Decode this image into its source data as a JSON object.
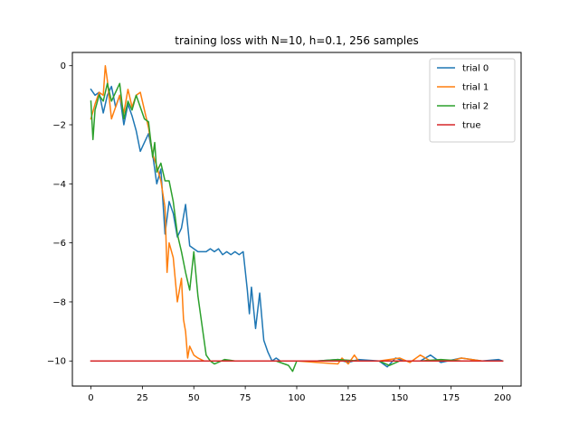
{
  "chart_data": {
    "type": "line",
    "title": "training loss with N=10, h=0.1, 256 samples",
    "xlabel": "",
    "ylabel": "",
    "xlim": [
      -9,
      209
    ],
    "ylim": [
      -10.85,
      0.45
    ],
    "xticks": [
      0,
      25,
      50,
      75,
      100,
      125,
      150,
      175,
      200
    ],
    "yticks": [
      0,
      -2,
      -4,
      -6,
      -8,
      -10
    ],
    "grid": false,
    "legend_position": "top-right",
    "series": [
      {
        "name": "trial 0",
        "color": "#1f77b4",
        "points": [
          [
            0,
            -0.8
          ],
          [
            2,
            -1.0
          ],
          [
            4,
            -0.9
          ],
          [
            6,
            -1.6
          ],
          [
            8,
            -1.0
          ],
          [
            10,
            -0.7
          ],
          [
            12,
            -1.4
          ],
          [
            14,
            -1.0
          ],
          [
            16,
            -2.0
          ],
          [
            18,
            -1.3
          ],
          [
            20,
            -1.7
          ],
          [
            22,
            -2.2
          ],
          [
            24,
            -2.9
          ],
          [
            26,
            -2.6
          ],
          [
            28,
            -2.3
          ],
          [
            30,
            -3.0
          ],
          [
            32,
            -4.0
          ],
          [
            34,
            -3.5
          ],
          [
            36,
            -5.7
          ],
          [
            38,
            -4.6
          ],
          [
            40,
            -5.0
          ],
          [
            42,
            -5.8
          ],
          [
            44,
            -5.5
          ],
          [
            46,
            -4.7
          ],
          [
            48,
            -6.1
          ],
          [
            50,
            -6.2
          ],
          [
            52,
            -6.3
          ],
          [
            54,
            -6.3
          ],
          [
            56,
            -6.3
          ],
          [
            58,
            -6.2
          ],
          [
            60,
            -6.3
          ],
          [
            62,
            -6.2
          ],
          [
            64,
            -6.4
          ],
          [
            66,
            -6.3
          ],
          [
            68,
            -6.4
          ],
          [
            70,
            -6.3
          ],
          [
            72,
            -6.4
          ],
          [
            74,
            -6.3
          ],
          [
            76,
            -7.6
          ],
          [
            77,
            -8.4
          ],
          [
            78,
            -7.5
          ],
          [
            80,
            -8.9
          ],
          [
            82,
            -7.7
          ],
          [
            84,
            -9.3
          ],
          [
            86,
            -9.7
          ],
          [
            88,
            -10.0
          ],
          [
            90,
            -9.9
          ],
          [
            92,
            -10.0
          ],
          [
            95,
            -10.0
          ],
          [
            100,
            -10.0
          ],
          [
            110,
            -10.0
          ],
          [
            120,
            -9.95
          ],
          [
            125,
            -10.05
          ],
          [
            130,
            -9.95
          ],
          [
            140,
            -10.0
          ],
          [
            144,
            -10.2
          ],
          [
            148,
            -9.9
          ],
          [
            152,
            -10.0
          ],
          [
            160,
            -10.0
          ],
          [
            165,
            -9.8
          ],
          [
            170,
            -10.05
          ],
          [
            180,
            -9.9
          ],
          [
            190,
            -10.0
          ],
          [
            198,
            -9.95
          ],
          [
            200,
            -10.0
          ]
        ]
      },
      {
        "name": "trial 1",
        "color": "#ff7f0e",
        "points": [
          [
            0,
            -1.8
          ],
          [
            2,
            -1.3
          ],
          [
            4,
            -0.9
          ],
          [
            6,
            -1.0
          ],
          [
            7,
            0.0
          ],
          [
            8,
            -0.5
          ],
          [
            10,
            -1.8
          ],
          [
            12,
            -1.4
          ],
          [
            14,
            -1.0
          ],
          [
            16,
            -1.6
          ],
          [
            18,
            -0.8
          ],
          [
            20,
            -1.4
          ],
          [
            22,
            -1.0
          ],
          [
            24,
            -0.9
          ],
          [
            26,
            -1.5
          ],
          [
            28,
            -2.1
          ],
          [
            30,
            -3.0
          ],
          [
            32,
            -3.4
          ],
          [
            34,
            -3.9
          ],
          [
            36,
            -4.8
          ],
          [
            37,
            -7.0
          ],
          [
            38,
            -6.0
          ],
          [
            40,
            -6.5
          ],
          [
            42,
            -8.0
          ],
          [
            44,
            -7.2
          ],
          [
            45,
            -8.6
          ],
          [
            46,
            -9.0
          ],
          [
            47,
            -9.9
          ],
          [
            48,
            -9.5
          ],
          [
            50,
            -9.8
          ],
          [
            52,
            -9.9
          ],
          [
            55,
            -10.0
          ],
          [
            60,
            -10.0
          ],
          [
            80,
            -10.0
          ],
          [
            100,
            -10.0
          ],
          [
            120,
            -10.1
          ],
          [
            122,
            -9.9
          ],
          [
            125,
            -10.1
          ],
          [
            128,
            -9.8
          ],
          [
            130,
            -10.0
          ],
          [
            140,
            -10.0
          ],
          [
            150,
            -9.9
          ],
          [
            155,
            -10.05
          ],
          [
            160,
            -9.8
          ],
          [
            165,
            -10.0
          ],
          [
            175,
            -10.0
          ],
          [
            180,
            -9.9
          ],
          [
            190,
            -10.0
          ],
          [
            200,
            -10.0
          ]
        ]
      },
      {
        "name": "trial 2",
        "color": "#2ca02c",
        "points": [
          [
            0,
            -1.2
          ],
          [
            1,
            -2.5
          ],
          [
            2,
            -1.5
          ],
          [
            4,
            -1.0
          ],
          [
            6,
            -1.2
          ],
          [
            8,
            -0.6
          ],
          [
            10,
            -1.2
          ],
          [
            12,
            -0.9
          ],
          [
            14,
            -0.6
          ],
          [
            16,
            -1.8
          ],
          [
            18,
            -1.2
          ],
          [
            20,
            -1.5
          ],
          [
            22,
            -1.0
          ],
          [
            24,
            -1.4
          ],
          [
            26,
            -1.8
          ],
          [
            28,
            -1.9
          ],
          [
            30,
            -3.1
          ],
          [
            31,
            -2.6
          ],
          [
            32,
            -3.6
          ],
          [
            34,
            -3.3
          ],
          [
            36,
            -3.9
          ],
          [
            38,
            -3.9
          ],
          [
            40,
            -4.6
          ],
          [
            42,
            -5.7
          ],
          [
            44,
            -6.3
          ],
          [
            46,
            -7.0
          ],
          [
            48,
            -7.6
          ],
          [
            50,
            -6.3
          ],
          [
            52,
            -7.8
          ],
          [
            54,
            -8.8
          ],
          [
            56,
            -9.8
          ],
          [
            58,
            -10.0
          ],
          [
            60,
            -10.1
          ],
          [
            65,
            -9.95
          ],
          [
            70,
            -10.0
          ],
          [
            80,
            -10.0
          ],
          [
            90,
            -10.0
          ],
          [
            96,
            -10.15
          ],
          [
            98,
            -10.35
          ],
          [
            100,
            -10.0
          ],
          [
            110,
            -10.0
          ],
          [
            120,
            -9.95
          ],
          [
            130,
            -10.0
          ],
          [
            140,
            -10.0
          ],
          [
            145,
            -10.15
          ],
          [
            150,
            -10.0
          ],
          [
            160,
            -10.0
          ],
          [
            170,
            -9.95
          ],
          [
            180,
            -10.0
          ],
          [
            190,
            -10.0
          ],
          [
            200,
            -10.0
          ]
        ]
      },
      {
        "name": "true",
        "color": "#d62728",
        "points": [
          [
            0,
            -10.0
          ],
          [
            200,
            -10.0
          ]
        ]
      }
    ]
  }
}
